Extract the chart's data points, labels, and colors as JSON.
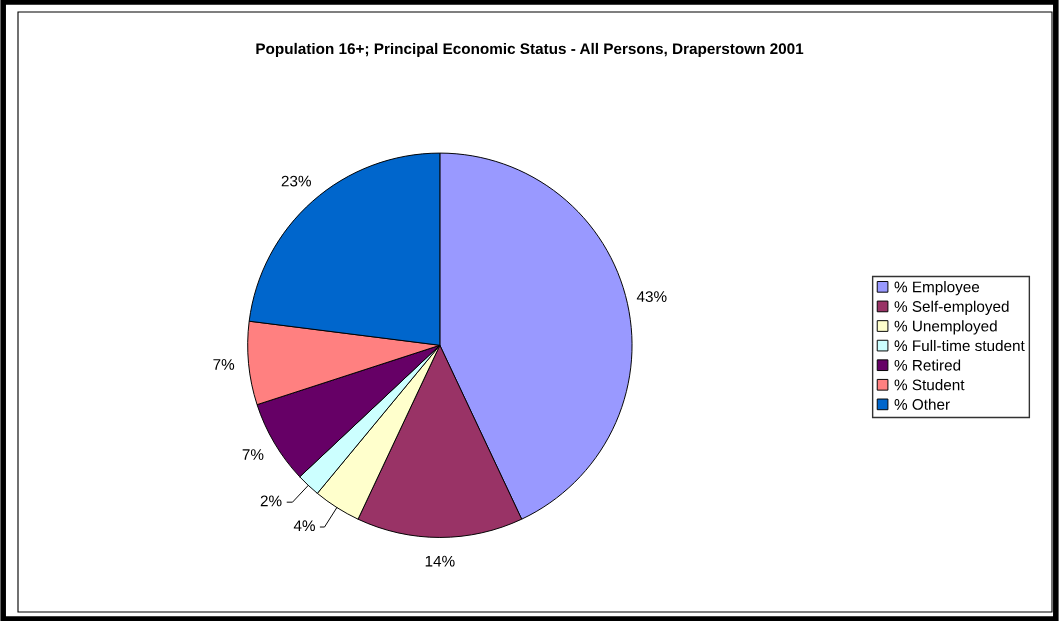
{
  "chart_data": {
    "type": "pie",
    "title": "Population 16+; Principal Economic Status - All Persons, Draperstown 2001",
    "categories": [
      "% Employee",
      "% Self-employed",
      "% Unemployed",
      "% Full-time student",
      "% Retired",
      "% Student",
      "% Other"
    ],
    "values": [
      43,
      14,
      4,
      2,
      7,
      7,
      23
    ],
    "colors": [
      "#9999ff",
      "#993366",
      "#ffffcc",
      "#ccffff",
      "#660066",
      "#ff8080",
      "#0066cc"
    ],
    "value_labels": [
      "43%",
      "14%",
      "4%",
      "2%",
      "7%",
      "7%",
      "23%"
    ],
    "legend": "right"
  }
}
